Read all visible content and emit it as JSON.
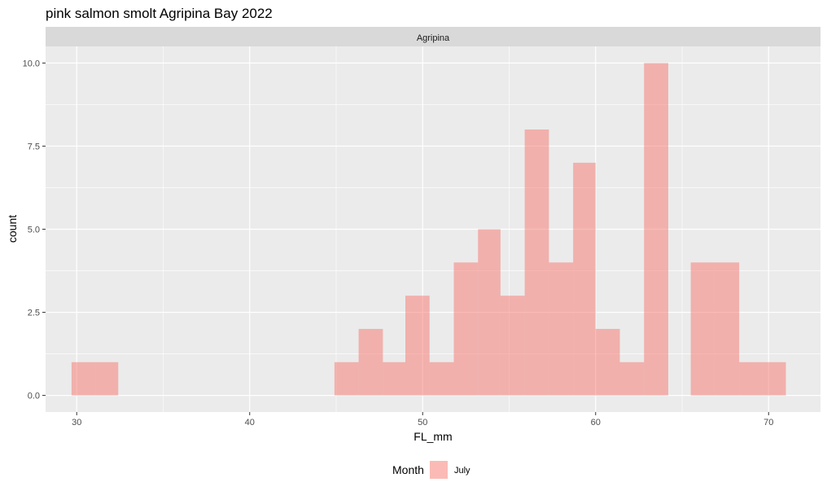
{
  "chart_data": {
    "type": "bar",
    "title": "pink salmon smolt Agripina Bay 2022",
    "facet_label": "Agripina",
    "xlabel": "FL_mm",
    "ylabel": "count",
    "xlim": [
      28.2,
      73.0
    ],
    "ylim": [
      -0.5,
      10.5
    ],
    "x_ticks": [
      30,
      40,
      50,
      60,
      70
    ],
    "x_tick_labels": [
      "30",
      "40",
      "50",
      "60",
      "70"
    ],
    "y_ticks": [
      0,
      2.5,
      5,
      7.5,
      10
    ],
    "y_tick_labels": [
      "0.0",
      "2.5",
      "5.0",
      "7.5",
      "10.0"
    ],
    "grid": true,
    "legend": {
      "title": "Month",
      "position": "bottom",
      "entries": [
        "July"
      ]
    },
    "colors": {
      "fill": "#F8766D",
      "fill_opacity": 0.5,
      "panel_bg": "#EBEBEB",
      "strip_bg": "#D9D9D9",
      "grid": "#FFFFFF"
    },
    "series": [
      {
        "name": "July",
        "bins": [
          {
            "x0": 29.7,
            "x1": 31.1,
            "count": 1
          },
          {
            "x0": 31.1,
            "x1": 32.4,
            "count": 1
          },
          {
            "x0": 44.9,
            "x1": 46.3,
            "count": 1
          },
          {
            "x0": 46.3,
            "x1": 47.7,
            "count": 2
          },
          {
            "x0": 47.7,
            "x1": 49.0,
            "count": 1
          },
          {
            "x0": 49.0,
            "x1": 50.4,
            "count": 3
          },
          {
            "x0": 50.4,
            "x1": 51.8,
            "count": 1
          },
          {
            "x0": 51.8,
            "x1": 53.2,
            "count": 4
          },
          {
            "x0": 53.2,
            "x1": 54.5,
            "count": 5
          },
          {
            "x0": 54.5,
            "x1": 55.9,
            "count": 3
          },
          {
            "x0": 55.9,
            "x1": 57.3,
            "count": 8
          },
          {
            "x0": 57.3,
            "x1": 58.7,
            "count": 4
          },
          {
            "x0": 58.7,
            "x1": 60.0,
            "count": 7
          },
          {
            "x0": 60.0,
            "x1": 61.4,
            "count": 2
          },
          {
            "x0": 61.4,
            "x1": 62.8,
            "count": 1
          },
          {
            "x0": 62.8,
            "x1": 64.2,
            "count": 10
          },
          {
            "x0": 65.5,
            "x1": 66.9,
            "count": 4
          },
          {
            "x0": 66.9,
            "x1": 68.3,
            "count": 4
          },
          {
            "x0": 68.3,
            "x1": 69.7,
            "count": 1
          },
          {
            "x0": 69.7,
            "x1": 71.0,
            "count": 1
          }
        ]
      }
    ]
  }
}
